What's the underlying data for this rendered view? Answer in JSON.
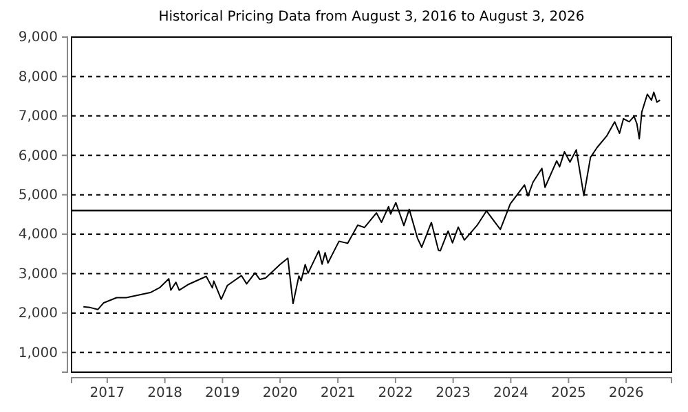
{
  "chart_data": {
    "type": "line",
    "title": "Historical Pricing Data from August 3, 2016 to August 3, 2026",
    "x": [
      "2016-08-03",
      "2016-09-15",
      "2016-11-03",
      "2016-12-10",
      "2017-03-01",
      "2017-05-01",
      "2017-08-01",
      "2017-10-01",
      "2017-12-01",
      "2018-01-26",
      "2018-02-08",
      "2018-03-12",
      "2018-04-02",
      "2018-06-01",
      "2018-09-20",
      "2018-10-29",
      "2018-11-07",
      "2018-12-24",
      "2019-02-01",
      "2019-05-01",
      "2019-06-03",
      "2019-07-26",
      "2019-08-26",
      "2019-10-02",
      "2019-12-31",
      "2020-02-19",
      "2020-03-23",
      "2020-04-29",
      "2020-05-13",
      "2020-06-08",
      "2020-06-26",
      "2020-09-02",
      "2020-09-23",
      "2020-10-12",
      "2020-10-30",
      "2021-01-08",
      "2021-03-04",
      "2021-05-07",
      "2021-06-18",
      "2021-09-02",
      "2021-10-04",
      "2021-11-18",
      "2021-12-01",
      "2022-01-03",
      "2022-02-23",
      "2022-03-29",
      "2022-05-20",
      "2022-06-16",
      "2022-08-16",
      "2022-09-30",
      "2022-10-12",
      "2022-11-30",
      "2022-12-28",
      "2023-02-02",
      "2023-03-13",
      "2023-06-01",
      "2023-07-31",
      "2023-10-27",
      "2023-12-29",
      "2024-03-28",
      "2024-04-19",
      "2024-05-21",
      "2024-07-16",
      "2024-08-05",
      "2024-10-18",
      "2024-11-05",
      "2024-12-06",
      "2025-01-10",
      "2025-02-19",
      "2025-04-08",
      "2025-05-20",
      "2025-07-01",
      "2025-09-01",
      "2025-10-20",
      "2025-11-20",
      "2025-12-15",
      "2026-01-20",
      "2026-02-20",
      "2026-03-10",
      "2026-03-25",
      "2026-04-10",
      "2026-05-15",
      "2026-06-10",
      "2026-06-25",
      "2026-07-15",
      "2026-08-03"
    ],
    "series": [
      {
        "color": "#000000",
        "values": [
          2160,
          2140,
          2090,
          2260,
          2390,
          2390,
          2470,
          2520,
          2650,
          2870,
          2580,
          2780,
          2580,
          2730,
          2930,
          2640,
          2810,
          2350,
          2700,
          2950,
          2740,
          3020,
          2850,
          2890,
          3230,
          3390,
          2240,
          2940,
          2820,
          3230,
          3010,
          3580,
          3240,
          3530,
          3270,
          3820,
          3770,
          4230,
          4170,
          4540,
          4300,
          4700,
          4510,
          4800,
          4220,
          4630,
          3900,
          3670,
          4300,
          3590,
          3580,
          4080,
          3780,
          4180,
          3850,
          4220,
          4590,
          4120,
          4770,
          5250,
          4970,
          5320,
          5670,
          5190,
          5860,
          5710,
          6090,
          5830,
          6140,
          4980,
          5950,
          6200,
          6500,
          6850,
          6560,
          6930,
          6850,
          6990,
          6800,
          6420,
          7100,
          7550,
          7400,
          7600,
          7350,
          7400
        ]
      }
    ],
    "xlim": [
      "2016-05-20",
      "2026-10-15"
    ],
    "xticks": [
      {
        "value": "2017-01-01",
        "label": "2017"
      },
      {
        "value": "2018-01-01",
        "label": "2018"
      },
      {
        "value": "2019-01-01",
        "label": "2019"
      },
      {
        "value": "2020-01-01",
        "label": "2020"
      },
      {
        "value": "2021-01-01",
        "label": "2021"
      },
      {
        "value": "2022-01-01",
        "label": "2022"
      },
      {
        "value": "2023-01-01",
        "label": "2023"
      },
      {
        "value": "2024-01-01",
        "label": "2024"
      },
      {
        "value": "2025-01-01",
        "label": "2025"
      },
      {
        "value": "2026-01-01",
        "label": "2026"
      }
    ],
    "ylim": [
      500,
      9000
    ],
    "yticks": [
      {
        "value": 1000,
        "label": "1,000"
      },
      {
        "value": 2000,
        "label": "2,000"
      },
      {
        "value": 3000,
        "label": "3,000"
      },
      {
        "value": 4000,
        "label": "4,000"
      },
      {
        "value": 5000,
        "label": "5,000"
      },
      {
        "value": 6000,
        "label": "6,000"
      },
      {
        "value": 7000,
        "label": "7,000"
      },
      {
        "value": 8000,
        "label": "8,000"
      },
      {
        "value": 9000,
        "label": "9,000"
      }
    ],
    "ref_lines": [
      {
        "axis": "y",
        "value": 4600,
        "color": "#000000"
      }
    ],
    "grid": "y",
    "line_style": "solid",
    "marker": "none"
  }
}
